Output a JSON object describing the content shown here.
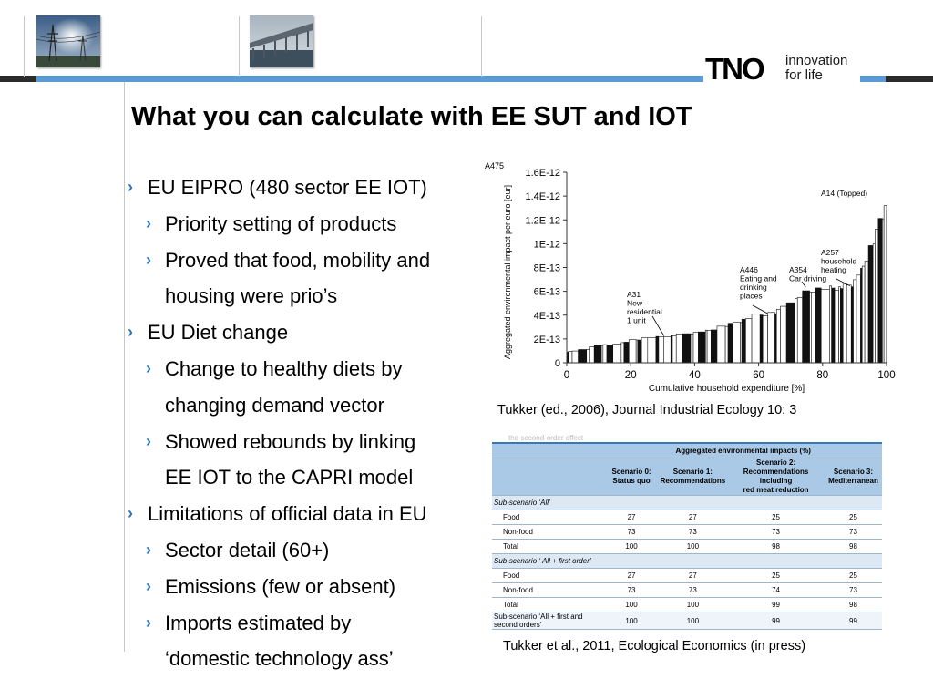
{
  "title": "What you can calculate with EE SUT and IOT",
  "logo": {
    "mark": "TNO",
    "tagline_1": "innovation",
    "tagline_2": "for life"
  },
  "bullets": [
    {
      "level": 1,
      "text": "EU EIPRO (480 sector EE IOT)"
    },
    {
      "level": 2,
      "text": "Priority setting of products"
    },
    {
      "level": 2,
      "text": "Proved that food, mobility and"
    },
    {
      "level": 3,
      "text": "housing were prio’s"
    },
    {
      "level": 1,
      "text": "EU Diet change"
    },
    {
      "level": 2,
      "text": "Change to healthy diets by"
    },
    {
      "level": 3,
      "text": "changing demand vector"
    },
    {
      "level": 2,
      "text": "Showed rebounds by linking"
    },
    {
      "level": 3,
      "text": "EE IOT to the CAPRI model"
    },
    {
      "level": 1,
      "text": "Limitations of official data in EU"
    },
    {
      "level": 2,
      "text": "Sector detail (60+)"
    },
    {
      "level": 2,
      "text": "Emissions (few or absent)"
    },
    {
      "level": 2,
      "text": "Imports estimated by"
    },
    {
      "level": 3,
      "text": "‘domestic technology ass’"
    }
  ],
  "chart_data": {
    "type": "bar",
    "xlabel": "Cumulative household expenditure [%]",
    "ylabel": "Aggregated environmental impact per euro [eur]",
    "xlim": [
      0,
      100
    ],
    "ylim": [
      0,
      1.6e-12
    ],
    "x_ticks": [
      "0",
      "20",
      "40",
      "60",
      "80",
      "100"
    ],
    "y_ticks": [
      "0",
      "2E-13",
      "4E-13",
      "6E-13",
      "8E-13",
      "1E-12",
      "1.2E-12",
      "1.4E-12",
      "1.6E-12"
    ],
    "corner_label": "A475",
    "annotations": [
      {
        "label": "A31\nNew\nresidential\n1 unit",
        "x": 27,
        "y": 2.1e-13
      },
      {
        "label": "A446\nEating and\ndrinking\nplaces",
        "x": 61,
        "y": 4e-13
      },
      {
        "label": "A354\nCar driving",
        "x": 77,
        "y": 6.2e-13
      },
      {
        "label": "A257\nhousehold\nheating",
        "x": 88,
        "y": 6.3e-13
      },
      {
        "label": "A14 (Topped)",
        "x": 99.5,
        "y": 1.3e-12
      }
    ],
    "caption": "Tukker (ed., 2006), Journal Industrial Ecology 10: 3"
  },
  "table": {
    "faded_text": "the second-order effect",
    "group_header": "Aggregated environmental impacts (%)",
    "columns": [
      "",
      "Scenario 0:\nStatus quo",
      "Scenario 1:\nRecommendations",
      "Scenario 2:\nRecommendations including\nred meat reduction",
      "Scenario 3:\nMediterranean"
    ],
    "rows": [
      {
        "type": "sub",
        "label": "Sub-scenario ‘All’"
      },
      {
        "type": "data",
        "label": "Food",
        "values": [
          "27",
          "27",
          "25",
          "25"
        ]
      },
      {
        "type": "data",
        "label": "Non-food",
        "values": [
          "73",
          "73",
          "73",
          "73"
        ]
      },
      {
        "type": "data",
        "label": "Total",
        "values": [
          "100",
          "100",
          "98",
          "98"
        ]
      },
      {
        "type": "sub",
        "label": "Sub-scenario ‘ All + first order’"
      },
      {
        "type": "data",
        "label": "Food",
        "values": [
          "27",
          "27",
          "25",
          "25"
        ]
      },
      {
        "type": "data",
        "label": "Non-food",
        "values": [
          "73",
          "73",
          "74",
          "73"
        ]
      },
      {
        "type": "data",
        "label": "Total",
        "values": [
          "100",
          "100",
          "99",
          "98"
        ]
      },
      {
        "type": "bottom",
        "label": "Sub-scenario ‘All + first and second orders’",
        "values": [
          "100",
          "100",
          "99",
          "99"
        ]
      }
    ],
    "caption": "Tukker et al., 2011, Ecological Economics (in press)"
  },
  "colors": {
    "accent_band": "#5b9bd5",
    "dark_band": "#2b2b2b",
    "bullet_chevron": "#2e75b6",
    "table_header": "#a9c9e6"
  }
}
